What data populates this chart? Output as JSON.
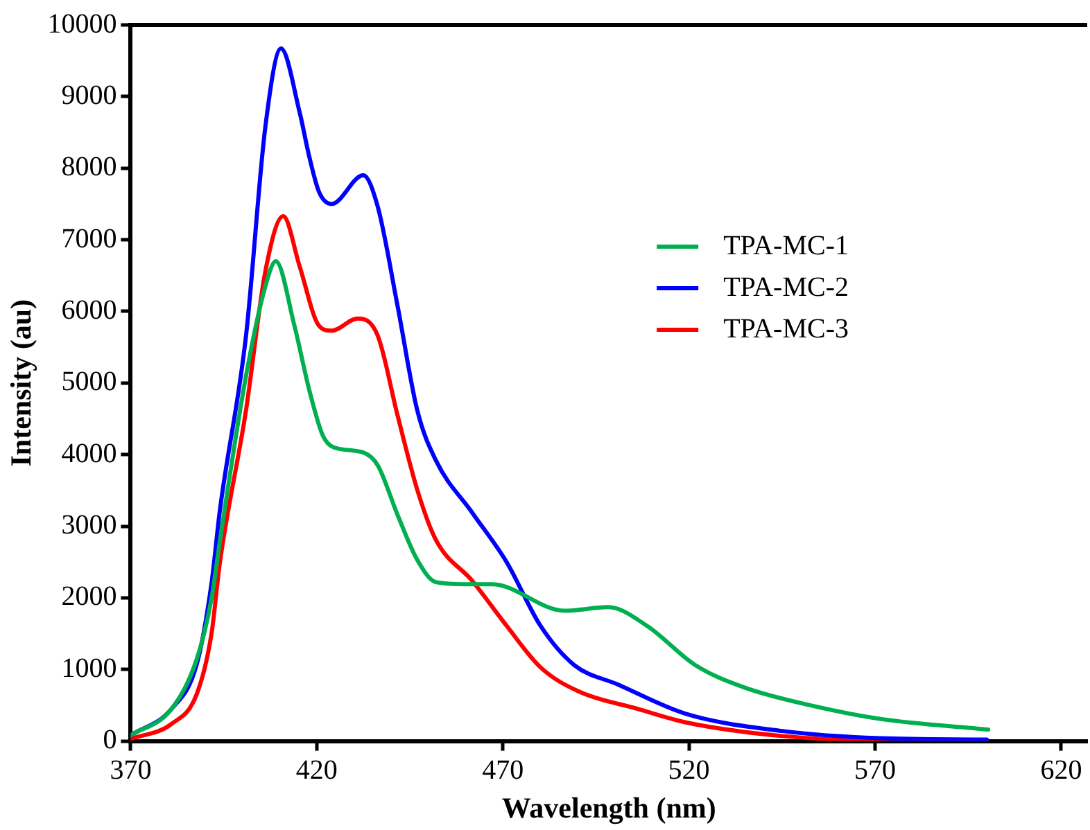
{
  "chart_data": {
    "type": "line",
    "xlabel": "Wavelength (nm)",
    "ylabel": "Intensity (au)",
    "xlim": [
      370,
      627
    ],
    "xticks": [
      370,
      420,
      470,
      520,
      570,
      620
    ],
    "ylim": [
      0,
      10000
    ],
    "yticks": [
      0,
      1000,
      2000,
      3000,
      4000,
      5000,
      6000,
      7000,
      8000,
      9000,
      10000
    ],
    "grid": false,
    "legend": "top right",
    "marker": "none",
    "line_style": "solid",
    "series": [
      {
        "name": "TPA-MC-1",
        "color": "#00b050",
        "x": [
          370,
          381,
          387.8,
          391.7,
          394,
          401,
          406.2,
          409,
          414,
          418,
          421.6,
          424.6,
          432.5,
          436.4,
          441.7,
          447,
          452,
          460,
          467.1,
          486.6,
          498.3,
          508.7,
          521.7,
          534.8,
          551.7,
          571.2,
          600.4
        ],
        "values": [
          80,
          450,
          1150,
          1980,
          2800,
          5100,
          6350,
          6700,
          5800,
          4900,
          4270,
          4100,
          4030,
          3850,
          3160,
          2530,
          2220,
          2190,
          2190,
          1820,
          1870,
          1610,
          1060,
          750,
          510,
          310,
          160
        ]
      },
      {
        "name": "TPA-MC-2",
        "color": "#0000ff",
        "x": [
          370,
          381,
          387.8,
          391.7,
          394,
          401,
          406.2,
          410.4,
          415.4,
          418,
          420.6,
          424,
          432.5,
          436.4,
          441.7,
          447,
          452,
          461.9,
          471,
          480.1,
          489.2,
          500.9,
          519.2,
          545.1,
          571.2,
          600
        ],
        "values": [
          80,
          450,
          1080,
          2190,
          3230,
          5660,
          8580,
          9670,
          8780,
          8160,
          7670,
          7500,
          7900,
          7460,
          6080,
          4620,
          3920,
          3180,
          2500,
          1610,
          1060,
          790,
          380,
          140,
          40,
          20
        ]
      },
      {
        "name": "TPA-MC-3",
        "color": "#ff0000",
        "x": [
          370,
          381,
          387.8,
          391.7,
          394,
          401,
          406.2,
          411,
          415.4,
          420.6,
          424,
          431,
          436.4,
          441.7,
          447,
          452,
          461.9,
          471,
          480.1,
          490.5,
          506.2,
          519.2,
          545.1,
          571.2,
          600
        ],
        "values": [
          30,
          240,
          660,
          1490,
          2500,
          4620,
          6560,
          7330,
          6630,
          5800,
          5730,
          5900,
          5660,
          4550,
          3510,
          2810,
          2230,
          1610,
          1030,
          690,
          450,
          260,
          70,
          10,
          10
        ]
      }
    ]
  }
}
